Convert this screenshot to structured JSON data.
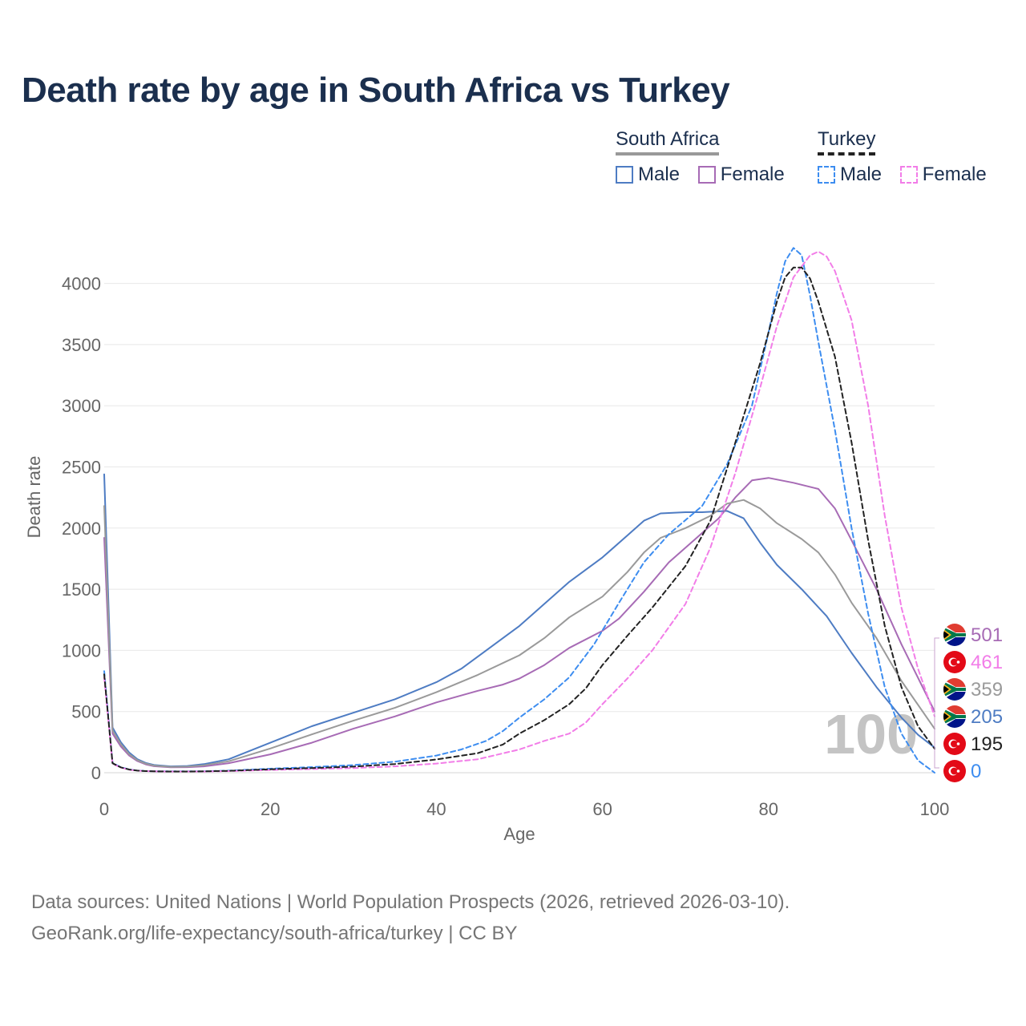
{
  "title": "Death rate by age in South Africa vs Turkey",
  "legend": {
    "south_africa": {
      "label": "South Africa",
      "male": "Male",
      "female": "Female"
    },
    "turkey": {
      "label": "Turkey",
      "male": "Male",
      "female": "Female"
    }
  },
  "colors": {
    "sa_male": "#4e7cc3",
    "sa_female": "#a76bb5",
    "sa_total": "#9a9a9a",
    "tr_male": "#3d8df0",
    "tr_female": "#f27de8",
    "tr_total": "#222222",
    "sa_flag": "south-africa-flag-icon",
    "tr_flag": "turkey-flag-icon"
  },
  "chart_data": {
    "type": "line",
    "title": "Death rate by age in South Africa vs Turkey",
    "xlabel": "Age",
    "ylabel": "Death rate",
    "xlim": [
      0,
      100
    ],
    "ylim": [
      0,
      4300
    ],
    "x_ticks": [
      "0",
      "20",
      "40",
      "60",
      "80",
      "100"
    ],
    "y_ticks": [
      "0",
      "500",
      "1000",
      "1500",
      "2000",
      "2500",
      "3000",
      "3500",
      "4000"
    ],
    "current_age_label": "100",
    "series": [
      {
        "name": "South Africa Male",
        "country": "South Africa",
        "sex": "Male",
        "color_key": "sa_male",
        "dash": false,
        "points": [
          [
            0,
            2440
          ],
          [
            1,
            370
          ],
          [
            2,
            250
          ],
          [
            3,
            165
          ],
          [
            4,
            110
          ],
          [
            5,
            80
          ],
          [
            6,
            63
          ],
          [
            8,
            52
          ],
          [
            10,
            55
          ],
          [
            12,
            70
          ],
          [
            15,
            110
          ],
          [
            20,
            245
          ],
          [
            25,
            380
          ],
          [
            30,
            490
          ],
          [
            35,
            600
          ],
          [
            40,
            740
          ],
          [
            43,
            850
          ],
          [
            46,
            1000
          ],
          [
            50,
            1200
          ],
          [
            53,
            1380
          ],
          [
            56,
            1560
          ],
          [
            60,
            1760
          ],
          [
            63,
            1940
          ],
          [
            65,
            2060
          ],
          [
            67,
            2120
          ],
          [
            70,
            2130
          ],
          [
            72,
            2130
          ],
          [
            75,
            2140
          ],
          [
            77,
            2080
          ],
          [
            79,
            1880
          ],
          [
            81,
            1700
          ],
          [
            84,
            1500
          ],
          [
            87,
            1280
          ],
          [
            90,
            980
          ],
          [
            93,
            700
          ],
          [
            96,
            450
          ],
          [
            98,
            310
          ],
          [
            100,
            205
          ]
        ]
      },
      {
        "name": "South Africa Female",
        "country": "South Africa",
        "sex": "Female",
        "color_key": "sa_female",
        "dash": false,
        "points": [
          [
            0,
            1920
          ],
          [
            1,
            320
          ],
          [
            2,
            215
          ],
          [
            3,
            140
          ],
          [
            4,
            95
          ],
          [
            5,
            68
          ],
          [
            6,
            53
          ],
          [
            8,
            44
          ],
          [
            10,
            45
          ],
          [
            12,
            52
          ],
          [
            15,
            78
          ],
          [
            20,
            150
          ],
          [
            25,
            245
          ],
          [
            30,
            360
          ],
          [
            35,
            460
          ],
          [
            40,
            575
          ],
          [
            45,
            670
          ],
          [
            48,
            720
          ],
          [
            50,
            770
          ],
          [
            53,
            880
          ],
          [
            56,
            1020
          ],
          [
            60,
            1160
          ],
          [
            62,
            1260
          ],
          [
            65,
            1480
          ],
          [
            68,
            1720
          ],
          [
            71,
            1900
          ],
          [
            74,
            2080
          ],
          [
            76,
            2250
          ],
          [
            78,
            2390
          ],
          [
            80,
            2410
          ],
          [
            83,
            2370
          ],
          [
            86,
            2320
          ],
          [
            88,
            2160
          ],
          [
            90,
            1900
          ],
          [
            93,
            1500
          ],
          [
            96,
            1050
          ],
          [
            100,
            501
          ]
        ]
      },
      {
        "name": "South Africa Total",
        "country": "South Africa",
        "sex": "Total",
        "color_key": "sa_total",
        "dash": false,
        "points": [
          [
            0,
            2180
          ],
          [
            1,
            345
          ],
          [
            2,
            233
          ],
          [
            3,
            152
          ],
          [
            4,
            102
          ],
          [
            5,
            74
          ],
          [
            6,
            58
          ],
          [
            8,
            48
          ],
          [
            10,
            50
          ],
          [
            12,
            61
          ],
          [
            15,
            94
          ],
          [
            20,
            198
          ],
          [
            25,
            313
          ],
          [
            30,
            425
          ],
          [
            35,
            530
          ],
          [
            40,
            658
          ],
          [
            45,
            800
          ],
          [
            50,
            960
          ],
          [
            53,
            1100
          ],
          [
            56,
            1270
          ],
          [
            60,
            1440
          ],
          [
            63,
            1640
          ],
          [
            65,
            1800
          ],
          [
            67,
            1920
          ],
          [
            70,
            2000
          ],
          [
            73,
            2100
          ],
          [
            75,
            2200
          ],
          [
            77,
            2230
          ],
          [
            79,
            2160
          ],
          [
            81,
            2040
          ],
          [
            84,
            1910
          ],
          [
            86,
            1800
          ],
          [
            88,
            1620
          ],
          [
            90,
            1390
          ],
          [
            93,
            1100
          ],
          [
            96,
            750
          ],
          [
            100,
            359
          ]
        ]
      },
      {
        "name": "Turkey Male",
        "country": "Turkey",
        "sex": "Male",
        "color_key": "tr_male",
        "dash": true,
        "points": [
          [
            0,
            830
          ],
          [
            1,
            80
          ],
          [
            2,
            45
          ],
          [
            3,
            27
          ],
          [
            4,
            18
          ],
          [
            5,
            14
          ],
          [
            6,
            12
          ],
          [
            8,
            11
          ],
          [
            10,
            11
          ],
          [
            12,
            12
          ],
          [
            15,
            17
          ],
          [
            20,
            33
          ],
          [
            25,
            46
          ],
          [
            30,
            62
          ],
          [
            35,
            90
          ],
          [
            40,
            140
          ],
          [
            43,
            190
          ],
          [
            46,
            260
          ],
          [
            48,
            340
          ],
          [
            50,
            450
          ],
          [
            53,
            600
          ],
          [
            56,
            780
          ],
          [
            59,
            1050
          ],
          [
            62,
            1390
          ],
          [
            65,
            1720
          ],
          [
            68,
            1950
          ],
          [
            72,
            2180
          ],
          [
            75,
            2520
          ],
          [
            78,
            3000
          ],
          [
            80,
            3600
          ],
          [
            81,
            3920
          ],
          [
            82,
            4180
          ],
          [
            83,
            4290
          ],
          [
            84,
            4230
          ],
          [
            85,
            3900
          ],
          [
            86,
            3520
          ],
          [
            88,
            2800
          ],
          [
            90,
            2000
          ],
          [
            92,
            1300
          ],
          [
            94,
            700
          ],
          [
            96,
            320
          ],
          [
            98,
            100
          ],
          [
            100,
            0
          ]
        ]
      },
      {
        "name": "Turkey Female",
        "country": "Turkey",
        "sex": "Female",
        "color_key": "tr_female",
        "dash": true,
        "points": [
          [
            0,
            780
          ],
          [
            1,
            75
          ],
          [
            2,
            42
          ],
          [
            3,
            25
          ],
          [
            4,
            17
          ],
          [
            5,
            13
          ],
          [
            6,
            11
          ],
          [
            8,
            10
          ],
          [
            10,
            10
          ],
          [
            12,
            10
          ],
          [
            15,
            13
          ],
          [
            20,
            22
          ],
          [
            25,
            30
          ],
          [
            30,
            38
          ],
          [
            35,
            52
          ],
          [
            40,
            75
          ],
          [
            45,
            110
          ],
          [
            50,
            190
          ],
          [
            53,
            260
          ],
          [
            56,
            320
          ],
          [
            58,
            410
          ],
          [
            60,
            560
          ],
          [
            63,
            770
          ],
          [
            66,
            1000
          ],
          [
            70,
            1380
          ],
          [
            73,
            1840
          ],
          [
            76,
            2450
          ],
          [
            79,
            3150
          ],
          [
            81,
            3650
          ],
          [
            83,
            4050
          ],
          [
            85,
            4230
          ],
          [
            86,
            4260
          ],
          [
            87,
            4220
          ],
          [
            88,
            4100
          ],
          [
            90,
            3700
          ],
          [
            92,
            3000
          ],
          [
            94,
            2100
          ],
          [
            96,
            1350
          ],
          [
            98,
            850
          ],
          [
            100,
            461
          ]
        ]
      },
      {
        "name": "Turkey Total",
        "country": "Turkey",
        "sex": "Total",
        "color_key": "tr_total",
        "dash": true,
        "points": [
          [
            0,
            805
          ],
          [
            1,
            77
          ],
          [
            2,
            44
          ],
          [
            3,
            26
          ],
          [
            4,
            17
          ],
          [
            5,
            13
          ],
          [
            6,
            11
          ],
          [
            8,
            10
          ],
          [
            10,
            10
          ],
          [
            12,
            11
          ],
          [
            15,
            15
          ],
          [
            20,
            28
          ],
          [
            25,
            38
          ],
          [
            30,
            50
          ],
          [
            35,
            71
          ],
          [
            40,
            108
          ],
          [
            45,
            160
          ],
          [
            48,
            230
          ],
          [
            50,
            320
          ],
          [
            53,
            430
          ],
          [
            56,
            560
          ],
          [
            58,
            690
          ],
          [
            60,
            880
          ],
          [
            63,
            1120
          ],
          [
            66,
            1350
          ],
          [
            70,
            1690
          ],
          [
            73,
            2060
          ],
          [
            76,
            2700
          ],
          [
            79,
            3350
          ],
          [
            81,
            3850
          ],
          [
            82,
            4050
          ],
          [
            83,
            4130
          ],
          [
            84,
            4130
          ],
          [
            85,
            4040
          ],
          [
            86,
            3850
          ],
          [
            88,
            3400
          ],
          [
            90,
            2700
          ],
          [
            92,
            1900
          ],
          [
            94,
            1200
          ],
          [
            96,
            700
          ],
          [
            98,
            380
          ],
          [
            100,
            195
          ]
        ]
      }
    ],
    "end_labels": [
      {
        "value": "501",
        "color_key": "sa_female",
        "flag": "sa"
      },
      {
        "value": "461",
        "color_key": "tr_female",
        "flag": "tr"
      },
      {
        "value": "359",
        "color_key": "sa_total",
        "flag": "sa"
      },
      {
        "value": "205",
        "color_key": "sa_male",
        "flag": "sa"
      },
      {
        "value": "195",
        "color_key": "tr_total",
        "flag": "tr"
      },
      {
        "value": "0",
        "color_key": "tr_male",
        "flag": "tr"
      }
    ]
  },
  "footer": {
    "line1": "Data sources: United Nations | World Population Prospects (2026, retrieved 2026-03-10).",
    "line2": "GeoRank.org/life-expectancy/south-africa/turkey | CC BY"
  }
}
